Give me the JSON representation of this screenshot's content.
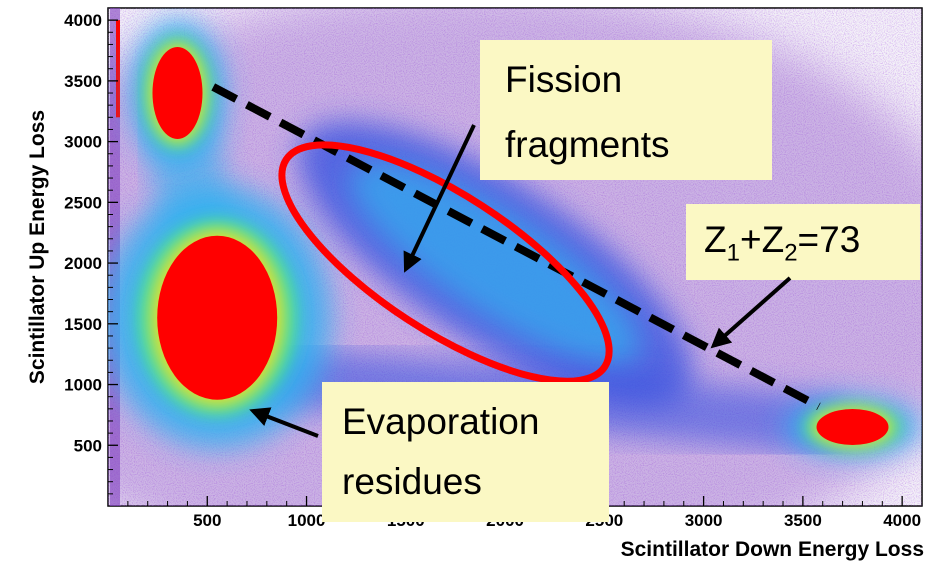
{
  "chart_data": {
    "type": "heatmap",
    "title": "",
    "xlabel": "Scintillator Down Energy Loss",
    "ylabel": "Scintillator Up Energy Loss",
    "xlim": [
      0,
      4100
    ],
    "ylim": [
      0,
      4100
    ],
    "xticks": [
      500,
      1000,
      1500,
      2000,
      2500,
      3000,
      3500,
      4000
    ],
    "yticks": [
      500,
      1000,
      1500,
      2000,
      2500,
      3000,
      3500,
      4000
    ],
    "xtick_labels": [
      "500",
      "1000",
      "1500",
      "2000",
      "2500",
      "3000",
      "3500",
      "4000"
    ],
    "ytick_labels": [
      "500",
      "1000",
      "1500",
      "2000",
      "2500",
      "3000",
      "3500",
      "4000"
    ],
    "grid": false,
    "colormap": [
      "#ffffff",
      "#8040c0",
      "#3050e0",
      "#30b0f0",
      "#40e0a0",
      "#e0e030",
      "#ff3010"
    ],
    "regions": [
      {
        "id": "upper-left-blob",
        "x": 350,
        "y": 3400,
        "max_color": "#ff0000"
      },
      {
        "id": "evaporation-residue-blob",
        "x": 550,
        "y": 1550,
        "max_color": "#ff0000"
      },
      {
        "id": "lower-right-blob",
        "x": 3750,
        "y": 650,
        "max_color": "#ff0000"
      },
      {
        "id": "fission-fragment-band",
        "x_range": [
          1000,
          2900
        ],
        "y_range": [
          1300,
          2700
        ],
        "max_color": "#30b0f0"
      }
    ],
    "overlays": {
      "fission_ellipse": {
        "color": "#ff0000",
        "center": [
          1700,
          2000
        ]
      },
      "z_sum_line": {
        "color": "#000000",
        "style": "dashed",
        "from": [
          530,
          3450
        ],
        "to": [
          3580,
          820
        ]
      }
    },
    "annotations": [
      {
        "id": "fission-fragments",
        "lines": [
          "Fission",
          "fragments"
        ],
        "points_to": [
          1500,
          1950
        ]
      },
      {
        "id": "z-sum",
        "text": "Z1+Z2=73",
        "points_to": [
          3050,
          1320
        ]
      },
      {
        "id": "evaporation-residues",
        "lines": [
          "Evaporation",
          "residues"
        ],
        "points_to": [
          700,
          750
        ]
      }
    ]
  },
  "annotations": {
    "fission": {
      "line1": "Fission",
      "line2": "fragments"
    },
    "zsum": {
      "z": "Z",
      "sub1": "1",
      "plus": "+Z",
      "sub2": "2",
      "eq": "=73"
    },
    "evap": {
      "line1": "Evaporation",
      "line2": "residues"
    }
  },
  "colors": {
    "note_bg": "#fbf8c4",
    "ellipse": "#ff0000",
    "dashed_line": "#000000"
  }
}
